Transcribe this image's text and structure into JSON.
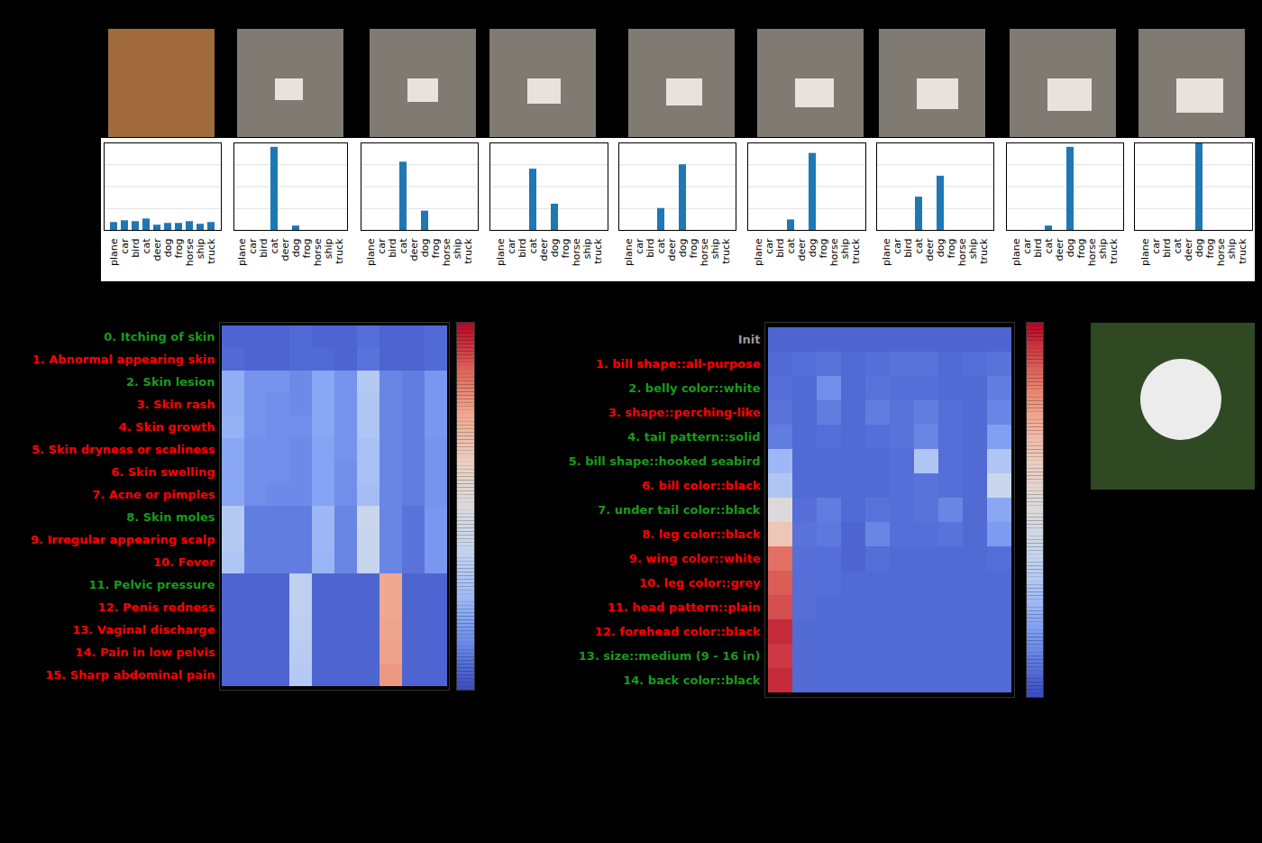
{
  "chart_data": [
    {
      "type": "bar",
      "categories": [
        "plane",
        "car",
        "bird",
        "cat",
        "deer",
        "dog",
        "frog",
        "horse",
        "ship",
        "truck"
      ],
      "values": [
        0.09,
        0.11,
        0.1,
        0.13,
        0.06,
        0.08,
        0.08,
        0.1,
        0.07,
        0.09
      ],
      "color": "#1f77b4",
      "ylim": [
        0,
        1
      ],
      "yticks": [
        0,
        0.25,
        0.5,
        0.75,
        1
      ],
      "grid": true,
      "tick_labels": "x"
    },
    {
      "type": "bar",
      "categories": [
        "plane",
        "car",
        "bird",
        "cat",
        "deer",
        "dog",
        "frog",
        "horse",
        "ship",
        "truck"
      ],
      "values": [
        0,
        0,
        0,
        0.95,
        0,
        0.05,
        0,
        0,
        0,
        0
      ],
      "color": "#1f77b4",
      "ylim": [
        0,
        1
      ],
      "yticks": [
        0,
        0.25,
        0.5,
        0.75,
        1
      ],
      "grid": true,
      "tick_labels": "x"
    },
    {
      "type": "bar",
      "categories": [
        "plane",
        "car",
        "bird",
        "cat",
        "deer",
        "dog",
        "frog",
        "horse",
        "ship",
        "truck"
      ],
      "values": [
        0,
        0,
        0,
        0.78,
        0,
        0.22,
        0,
        0,
        0,
        0
      ],
      "color": "#1f77b4",
      "ylim": [
        0,
        1
      ],
      "yticks": [
        0,
        0.25,
        0.5,
        0.75,
        1
      ],
      "grid": true,
      "tick_labels": "x"
    },
    {
      "type": "bar",
      "categories": [
        "plane",
        "car",
        "bird",
        "cat",
        "deer",
        "dog",
        "frog",
        "horse",
        "ship",
        "truck"
      ],
      "values": [
        0,
        0,
        0,
        0.7,
        0,
        0.3,
        0,
        0,
        0,
        0
      ],
      "color": "#1f77b4",
      "ylim": [
        0,
        1
      ],
      "yticks": [
        0,
        0.25,
        0.5,
        0.75,
        1
      ],
      "grid": true,
      "tick_labels": "x"
    },
    {
      "type": "bar",
      "categories": [
        "plane",
        "car",
        "bird",
        "cat",
        "deer",
        "dog",
        "frog",
        "horse",
        "ship",
        "truck"
      ],
      "values": [
        0,
        0,
        0,
        0.25,
        0,
        0.75,
        0,
        0,
        0,
        0
      ],
      "color": "#1f77b4",
      "ylim": [
        0,
        1
      ],
      "yticks": [
        0,
        0.25,
        0.5,
        0.75,
        1
      ],
      "grid": true,
      "tick_labels": "x"
    },
    {
      "type": "bar",
      "categories": [
        "plane",
        "car",
        "bird",
        "cat",
        "deer",
        "dog",
        "frog",
        "horse",
        "ship",
        "truck"
      ],
      "values": [
        0,
        0,
        0,
        0.12,
        0,
        0.88,
        0,
        0,
        0,
        0
      ],
      "color": "#1f77b4",
      "ylim": [
        0,
        1
      ],
      "yticks": [
        0,
        0.25,
        0.5,
        0.75,
        1
      ],
      "grid": true,
      "tick_labels": "x"
    },
    {
      "type": "bar",
      "categories": [
        "plane",
        "car",
        "bird",
        "cat",
        "deer",
        "dog",
        "frog",
        "horse",
        "ship",
        "truck"
      ],
      "values": [
        0,
        0,
        0,
        0.38,
        0,
        0.62,
        0,
        0,
        0,
        0
      ],
      "color": "#1f77b4",
      "ylim": [
        0,
        1
      ],
      "yticks": [
        0,
        0.25,
        0.5,
        0.75,
        1
      ],
      "grid": true,
      "tick_labels": "x"
    },
    {
      "type": "bar",
      "categories": [
        "plane",
        "car",
        "bird",
        "cat",
        "deer",
        "dog",
        "frog",
        "horse",
        "ship",
        "truck"
      ],
      "values": [
        0,
        0,
        0,
        0.05,
        0,
        0.95,
        0,
        0,
        0,
        0
      ],
      "color": "#1f77b4",
      "ylim": [
        0,
        1
      ],
      "yticks": [
        0,
        0.25,
        0.5,
        0.75,
        1
      ],
      "grid": true,
      "tick_labels": "x"
    },
    {
      "type": "bar",
      "categories": [
        "plane",
        "car",
        "bird",
        "cat",
        "deer",
        "dog",
        "frog",
        "horse",
        "ship",
        "truck"
      ],
      "values": [
        0,
        0,
        0,
        0,
        0,
        1,
        0,
        0,
        0,
        0
      ],
      "color": "#1f77b4",
      "ylim": [
        0,
        1
      ],
      "yticks": [
        0,
        0.25,
        0.5,
        0.75,
        1
      ],
      "grid": true,
      "tick_labels": "x"
    },
    {
      "type": "heatmap",
      "tick_labels": "y",
      "colorbar": {
        "range": [
          0,
          1
        ]
      },
      "series": [
        {
          "name": "0. Itching of skin",
          "color": "#1a9a1a",
          "values": [
            0.05,
            0.05,
            0.05,
            0.06,
            0.05,
            0.05,
            0.07,
            0.05,
            0.05,
            0.06
          ]
        },
        {
          "name": "1. Abnormal appearing skin",
          "color": "#ff0000",
          "values": [
            0.06,
            0.05,
            0.05,
            0.06,
            0.06,
            0.05,
            0.08,
            0.05,
            0.05,
            0.06
          ]
        },
        {
          "name": "2. Skin lesion",
          "color": "#1a9a1a",
          "values": [
            0.22,
            0.15,
            0.15,
            0.13,
            0.2,
            0.15,
            0.32,
            0.12,
            0.1,
            0.16
          ]
        },
        {
          "name": "3. Skin rash",
          "color": "#ff0000",
          "values": [
            0.22,
            0.15,
            0.14,
            0.13,
            0.2,
            0.15,
            0.3,
            0.12,
            0.1,
            0.16
          ]
        },
        {
          "name": "4. Skin growth",
          "color": "#ff0000",
          "values": [
            0.23,
            0.15,
            0.14,
            0.14,
            0.2,
            0.15,
            0.3,
            0.12,
            0.1,
            0.16
          ]
        },
        {
          "name": "5. Skin dryness or scaliness",
          "color": "#ff0000",
          "values": [
            0.2,
            0.14,
            0.14,
            0.13,
            0.19,
            0.15,
            0.28,
            0.12,
            0.1,
            0.15
          ]
        },
        {
          "name": "6. Skin swelling",
          "color": "#ff0000",
          "values": [
            0.2,
            0.14,
            0.14,
            0.13,
            0.19,
            0.14,
            0.28,
            0.12,
            0.1,
            0.15
          ]
        },
        {
          "name": "7. Acne or pimples",
          "color": "#ff0000",
          "values": [
            0.2,
            0.14,
            0.13,
            0.13,
            0.19,
            0.14,
            0.27,
            0.12,
            0.1,
            0.15
          ]
        },
        {
          "name": "8. Skin moles",
          "color": "#1a9a1a",
          "values": [
            0.32,
            0.1,
            0.1,
            0.1,
            0.25,
            0.12,
            0.4,
            0.12,
            0.08,
            0.16
          ]
        },
        {
          "name": "9. Irregular appearing scalp",
          "color": "#ff0000",
          "values": [
            0.32,
            0.1,
            0.1,
            0.1,
            0.25,
            0.12,
            0.38,
            0.12,
            0.08,
            0.16
          ]
        },
        {
          "name": "10. Fever",
          "color": "#ff0000",
          "values": [
            0.3,
            0.1,
            0.1,
            0.1,
            0.24,
            0.12,
            0.38,
            0.12,
            0.08,
            0.16
          ]
        },
        {
          "name": "11. Pelvic pressure",
          "color": "#1a9a1a",
          "values": [
            0.05,
            0.05,
            0.05,
            0.35,
            0.05,
            0.05,
            0.05,
            0.74,
            0.05,
            0.05
          ]
        },
        {
          "name": "12. Penis redness",
          "color": "#ff0000",
          "values": [
            0.05,
            0.05,
            0.05,
            0.35,
            0.05,
            0.05,
            0.05,
            0.74,
            0.05,
            0.05
          ]
        },
        {
          "name": "13. Vaginal discharge",
          "color": "#ff0000",
          "values": [
            0.05,
            0.05,
            0.05,
            0.34,
            0.05,
            0.05,
            0.05,
            0.75,
            0.05,
            0.05
          ]
        },
        {
          "name": "14. Pain in low pelvis",
          "color": "#ff0000",
          "values": [
            0.05,
            0.05,
            0.05,
            0.33,
            0.05,
            0.05,
            0.05,
            0.76,
            0.05,
            0.05
          ]
        },
        {
          "name": "15. Sharp abdominal pain",
          "color": "#ff0000",
          "values": [
            0.05,
            0.05,
            0.05,
            0.32,
            0.05,
            0.05,
            0.05,
            0.78,
            0.05,
            0.05
          ]
        }
      ]
    },
    {
      "type": "heatmap",
      "tick_labels": "y",
      "colorbar": {
        "range": [
          0,
          1
        ]
      },
      "series": [
        {
          "name": "Init",
          "color": "#999999",
          "values": [
            0.05,
            0.05,
            0.05,
            0.05,
            0.05,
            0.05,
            0.05,
            0.05,
            0.05,
            0.05
          ]
        },
        {
          "name": "1. bill shape::all-purpose",
          "color": "#ff0000",
          "values": [
            0.06,
            0.07,
            0.08,
            0.06,
            0.07,
            0.08,
            0.08,
            0.06,
            0.07,
            0.08
          ]
        },
        {
          "name": "2. belly color::white",
          "color": "#1a9a1a",
          "values": [
            0.07,
            0.06,
            0.14,
            0.06,
            0.08,
            0.07,
            0.07,
            0.06,
            0.06,
            0.1
          ]
        },
        {
          "name": "3. shape::perching-like",
          "color": "#ff0000",
          "values": [
            0.08,
            0.06,
            0.1,
            0.06,
            0.1,
            0.08,
            0.1,
            0.07,
            0.06,
            0.12
          ]
        },
        {
          "name": "4. tail pattern::solid",
          "color": "#1a9a1a",
          "values": [
            0.1,
            0.06,
            0.07,
            0.06,
            0.07,
            0.08,
            0.12,
            0.07,
            0.06,
            0.18
          ]
        },
        {
          "name": "5. bill shape::hooked seabird",
          "color": "#1a9a1a",
          "values": [
            0.25,
            0.06,
            0.06,
            0.06,
            0.06,
            0.07,
            0.3,
            0.07,
            0.06,
            0.3
          ]
        },
        {
          "name": "6. bill color::black",
          "color": "#ff0000",
          "values": [
            0.3,
            0.06,
            0.06,
            0.06,
            0.06,
            0.07,
            0.08,
            0.07,
            0.06,
            0.4
          ]
        },
        {
          "name": "7. under tail color::black",
          "color": "#1a9a1a",
          "values": [
            0.5,
            0.07,
            0.1,
            0.06,
            0.08,
            0.07,
            0.08,
            0.12,
            0.06,
            0.2
          ]
        },
        {
          "name": "8. leg color::black",
          "color": "#ff0000",
          "values": [
            0.65,
            0.08,
            0.09,
            0.05,
            0.12,
            0.07,
            0.07,
            0.08,
            0.06,
            0.17
          ]
        },
        {
          "name": "9. wing color::white",
          "color": "#ff0000",
          "values": [
            0.85,
            0.07,
            0.07,
            0.05,
            0.07,
            0.06,
            0.06,
            0.06,
            0.06,
            0.07
          ]
        },
        {
          "name": "10. leg color::grey",
          "color": "#ff0000",
          "values": [
            0.88,
            0.07,
            0.07,
            0.06,
            0.06,
            0.06,
            0.06,
            0.06,
            0.06,
            0.06
          ]
        },
        {
          "name": "11. head pattern::plain",
          "color": "#ff0000",
          "values": [
            0.9,
            0.07,
            0.06,
            0.06,
            0.06,
            0.06,
            0.06,
            0.06,
            0.06,
            0.06
          ]
        },
        {
          "name": "12. forehead color::black",
          "color": "#ff0000",
          "values": [
            0.95,
            0.06,
            0.06,
            0.06,
            0.06,
            0.06,
            0.06,
            0.06,
            0.06,
            0.06
          ]
        },
        {
          "name": "13. size::medium (9 - 16 in)",
          "color": "#1a9a1a",
          "values": [
            0.93,
            0.06,
            0.06,
            0.06,
            0.06,
            0.06,
            0.06,
            0.06,
            0.06,
            0.06
          ]
        },
        {
          "name": "14. back color::black",
          "color": "#1a9a1a",
          "values": [
            0.95,
            0.06,
            0.06,
            0.06,
            0.06,
            0.06,
            0.06,
            0.06,
            0.06,
            0.06
          ]
        }
      ]
    }
  ]
}
